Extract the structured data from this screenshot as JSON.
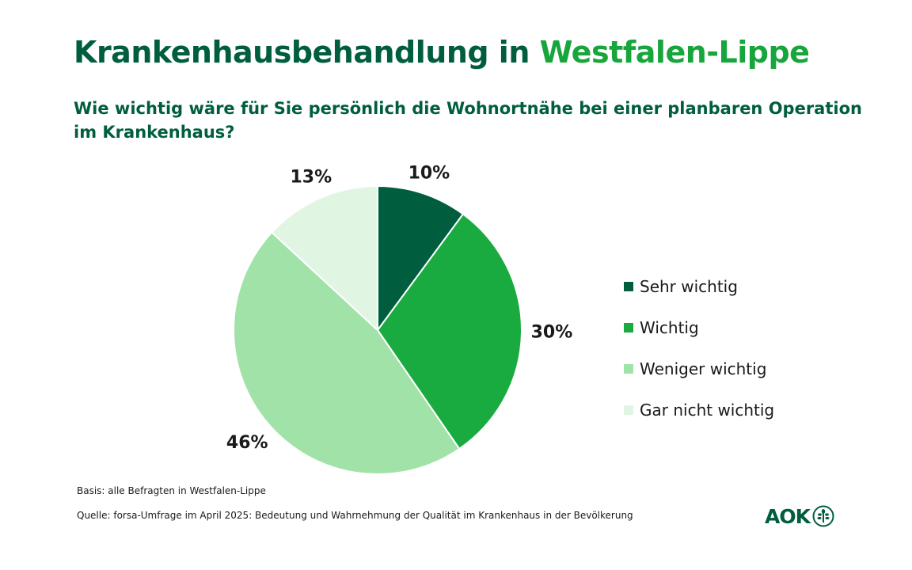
{
  "title": {
    "part1": "Krankenhausbehandlung in",
    "part2": "Westfalen-Lippe"
  },
  "subtitle": "Wie wichtig wäre für Sie persönlich die Wohnortnähe bei einer planbaren Operation im Krankenhaus?",
  "chart_data": {
    "type": "pie",
    "title": "Krankenhausbehandlung in Westfalen-Lippe",
    "subtitle": "Wie wichtig wäre für Sie persönlich die Wohnortnähe bei einer planbaren Operation im Krankenhaus?",
    "categories": [
      "Sehr wichtig",
      "Wichtig",
      "Weniger wichtig",
      "Gar nicht wichtig"
    ],
    "values": [
      10,
      30,
      46,
      13
    ],
    "value_labels": [
      "10%",
      "30%",
      "46%",
      "13%"
    ],
    "colors": [
      "#005e3f",
      "#1aab40",
      "#a1e2a9",
      "#e1f5e3"
    ],
    "legend": "right",
    "start": "12 o'clock, clockwise"
  },
  "footer": {
    "basis": "Basis: alle Befragten in Westfalen-Lippe",
    "source": "Quelle: forsa-Umfrage im April 2025: Bedeutung und Wahrnehmung der Qualität im Krankenhaus in der Bevölkerung"
  },
  "logo": {
    "text": "AOK",
    "icon": "aok-tree-icon",
    "color": "#005e3f"
  }
}
